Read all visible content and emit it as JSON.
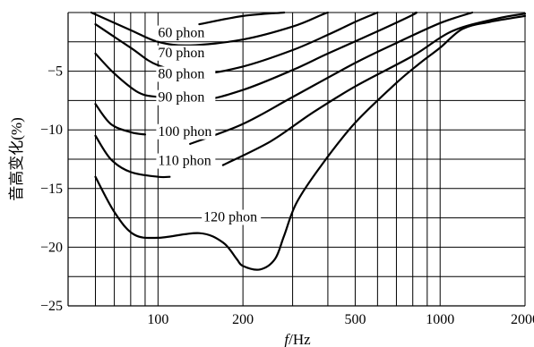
{
  "chart_data": {
    "type": "line",
    "xscale": "log",
    "xlabel_symbol": "f",
    "xlabel_unit": "/Hz",
    "ylabel": "音高变化(%)",
    "xlim": [
      48,
      2000
    ],
    "ylim": [
      -25,
      0
    ],
    "xticks": [
      {
        "value": 100,
        "label": "100"
      },
      {
        "value": 200,
        "label": "200"
      },
      {
        "value": 500,
        "label": "500"
      },
      {
        "value": 1000,
        "label": "1000"
      },
      {
        "value": 2000,
        "label": "2000"
      }
    ],
    "yticks": [
      {
        "value": -5,
        "label": "−5"
      },
      {
        "value": -10,
        "label": "−10"
      },
      {
        "value": -15,
        "label": "−15"
      },
      {
        "value": -20,
        "label": "−20"
      },
      {
        "value": -25,
        "label": "−25"
      }
    ],
    "grid_x": [
      48,
      60,
      70,
      80,
      90,
      100,
      200,
      300,
      400,
      500,
      600,
      700,
      800,
      900,
      1000,
      2000
    ],
    "grid_y": [
      0,
      -2.5,
      -5,
      -7.5,
      -10,
      -12.5,
      -15,
      -17.5,
      -20,
      -22.5,
      -25
    ],
    "series": [
      {
        "name": "60 phon",
        "points": [
          [
            140,
            -1.0
          ],
          [
            200,
            -0.3
          ],
          [
            280,
            0
          ]
        ],
        "label_at": [
          100,
          -2.1
        ]
      },
      {
        "name": "70 phon",
        "points": [
          [
            58,
            0
          ],
          [
            80,
            -1.5
          ],
          [
            100,
            -2.5
          ],
          [
            130,
            -2.8
          ],
          [
            200,
            -2.3
          ],
          [
            300,
            -1.2
          ],
          [
            380,
            -0.2
          ],
          [
            400,
            0
          ]
        ],
        "label_at": [
          100,
          -3.8
        ]
      },
      {
        "name": "80 phon",
        "points": [
          [
            60,
            -1.0
          ],
          [
            80,
            -3.0
          ],
          [
            100,
            -4.5
          ],
          [
            140,
            -5.2
          ],
          [
            200,
            -4.6
          ],
          [
            300,
            -3.2
          ],
          [
            400,
            -1.9
          ],
          [
            500,
            -0.8
          ],
          [
            600,
            0
          ]
        ],
        "label_at": [
          100,
          -5.6
        ]
      },
      {
        "name": "90 phon",
        "points": [
          [
            60,
            -3.5
          ],
          [
            70,
            -5.2
          ],
          [
            85,
            -6.8
          ],
          [
            100,
            -7.2
          ],
          [
            140,
            -7.5
          ],
          [
            200,
            -6.6
          ],
          [
            300,
            -4.9
          ],
          [
            400,
            -3.5
          ],
          [
            600,
            -1.6
          ],
          [
            800,
            -0.2
          ],
          [
            820,
            0
          ]
        ],
        "label_at": [
          100,
          -7.6
        ]
      },
      {
        "name": "100 phon",
        "points": [
          [
            60,
            -7.8
          ],
          [
            68,
            -9.5
          ],
          [
            80,
            -10.2
          ],
          [
            90,
            -10.4
          ]
        ],
        "label_at": [
          100,
          -10.5
        ]
      },
      {
        "name": "100 phon tail",
        "points": [
          [
            130,
            -11.2
          ],
          [
            200,
            -9.5
          ],
          [
            300,
            -7.2
          ],
          [
            500,
            -4.3
          ],
          [
            700,
            -2.6
          ],
          [
            1000,
            -0.9
          ],
          [
            1300,
            0
          ]
        ],
        "label_at": null
      },
      {
        "name": "110 phon",
        "points": [
          [
            60,
            -10.5
          ],
          [
            68,
            -12.5
          ],
          [
            80,
            -13.6
          ],
          [
            100,
            -14.0
          ],
          [
            110,
            -14.0
          ]
        ],
        "label_at": [
          100,
          -13.0
        ]
      },
      {
        "name": "110 phon tail",
        "points": [
          [
            170,
            -13.0
          ],
          [
            250,
            -11.0
          ],
          [
            350,
            -8.6
          ],
          [
            500,
            -6.3
          ],
          [
            800,
            -3.7
          ],
          [
            1100,
            -1.6
          ],
          [
            1600,
            -0.5
          ],
          [
            2000,
            -0.1
          ]
        ],
        "label_at": null
      },
      {
        "name": "120 phon",
        "points": [
          [
            60,
            -14.0
          ],
          [
            70,
            -17.0
          ],
          [
            82,
            -18.9
          ],
          [
            100,
            -19.2
          ],
          [
            140,
            -18.8
          ],
          [
            170,
            -19.6
          ],
          [
            190,
            -21.0
          ],
          [
            200,
            -21.6
          ],
          [
            230,
            -21.9
          ],
          [
            260,
            -21.0
          ],
          [
            280,
            -19.0
          ],
          [
            310,
            -16.2
          ],
          [
            380,
            -13.0
          ],
          [
            500,
            -9.4
          ],
          [
            700,
            -6.0
          ],
          [
            850,
            -4.3
          ],
          [
            1000,
            -3.0
          ],
          [
            1200,
            -1.4
          ],
          [
            1500,
            -0.8
          ],
          [
            2000,
            -0.3
          ]
        ],
        "label_at": [
          145,
          -17.8
        ]
      }
    ],
    "grid": true
  }
}
